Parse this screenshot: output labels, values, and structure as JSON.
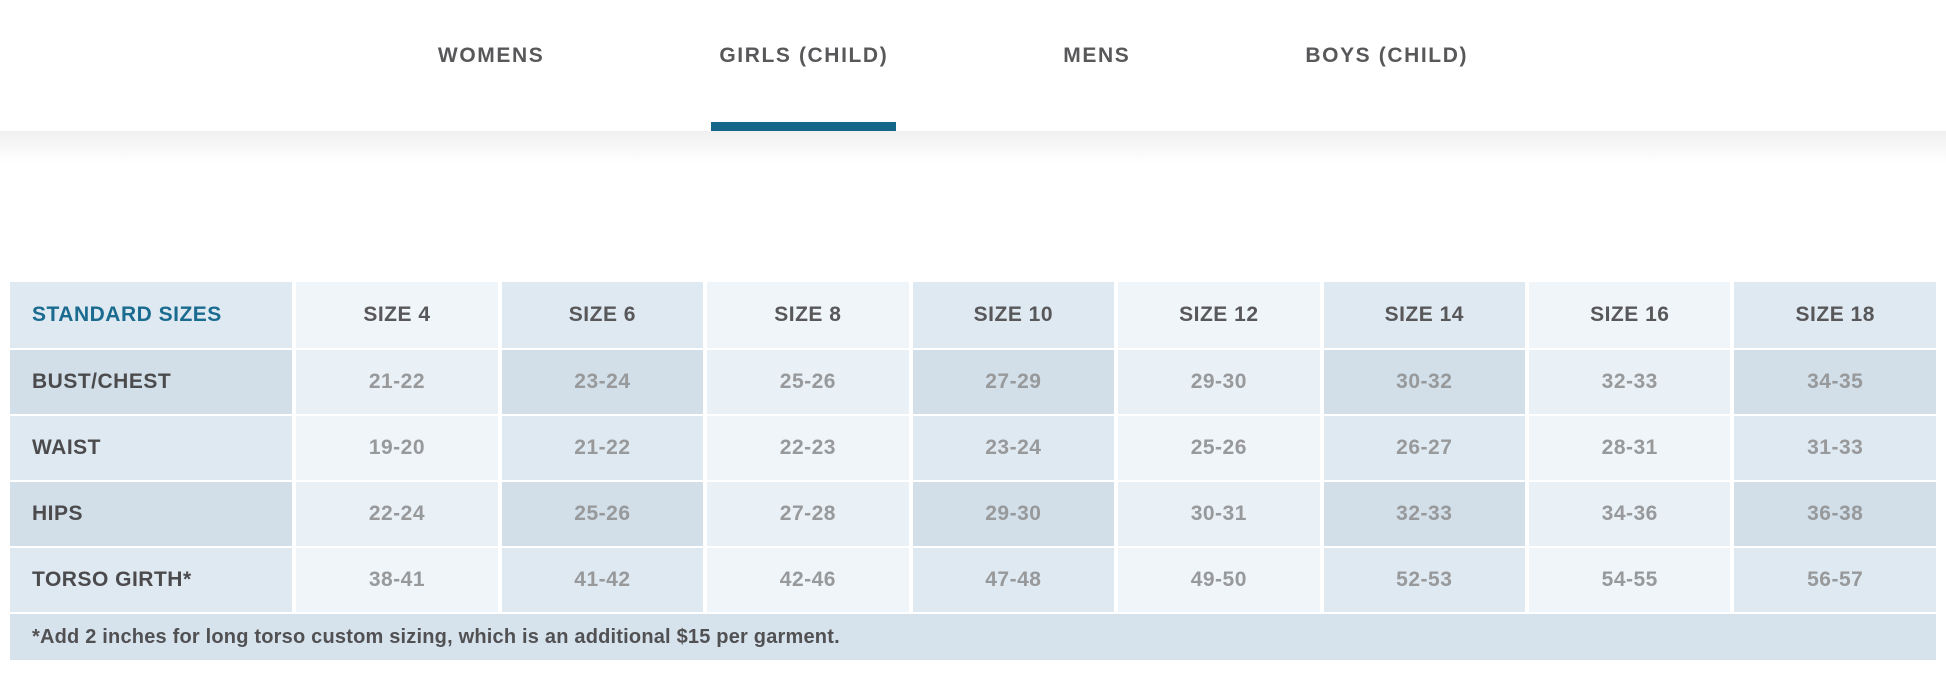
{
  "tabs": {
    "active_label": "GIRLS (CHILD)",
    "items": [
      {
        "label": "WOMENS"
      },
      {
        "label": "GIRLS (CHILD)"
      },
      {
        "label": "MENS"
      },
      {
        "label": "BOYS (CHILD)"
      }
    ]
  },
  "table": {
    "header": [
      "STANDARD SIZES",
      "SIZE 4",
      "SIZE 6",
      "SIZE 8",
      "SIZE 10",
      "SIZE 12",
      "SIZE 14",
      "SIZE 16",
      "SIZE 18"
    ],
    "rows": [
      {
        "label": "BUST/CHEST",
        "values": [
          "21-22",
          "23-24",
          "25-26",
          "27-29",
          "29-30",
          "30-32",
          "32-33",
          "34-35"
        ]
      },
      {
        "label": "WAIST",
        "values": [
          "19-20",
          "21-22",
          "22-23",
          "23-24",
          "25-26",
          "26-27",
          "28-31",
          "31-33"
        ]
      },
      {
        "label": "HIPS",
        "values": [
          "22-24",
          "25-26",
          "27-28",
          "29-30",
          "30-31",
          "32-33",
          "34-36",
          "36-38"
        ]
      },
      {
        "label": "TORSO GIRTH*",
        "values": [
          "38-41",
          "41-42",
          "42-46",
          "47-48",
          "49-50",
          "52-53",
          "54-55",
          "56-57"
        ]
      }
    ],
    "footnote": "*Add 2 inches for long torso custom sizing, which is an additional $15 per garment."
  },
  "colors": {
    "accent_teal": "#15678a",
    "header_label_teal": "#1a6b8f",
    "tab_text": "#58585a",
    "row_label_text": "#4b4b4d",
    "value_text": "#97999b",
    "cell_blue": "#dfe9f1",
    "cell_pale": "#f0f5f9",
    "cell_blue_dark": "#d2dfe9",
    "cell_pale_dark": "#e9f0f6",
    "footnote_bg": "#d6e2ec"
  }
}
